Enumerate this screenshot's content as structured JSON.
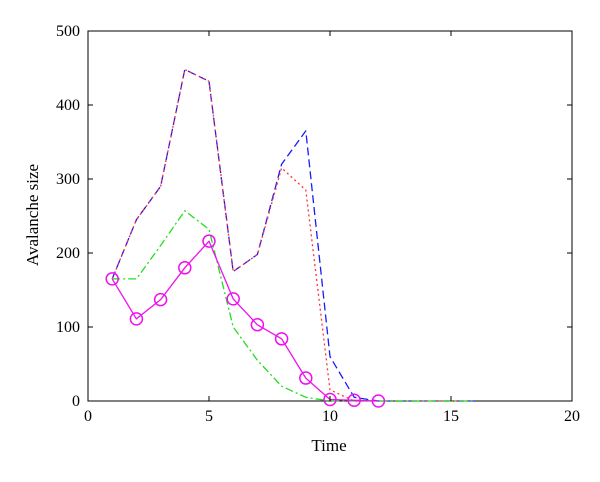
{
  "chart_data": {
    "type": "line",
    "xlabel": "Time",
    "ylabel": "Avalanche size",
    "xlim": [
      0,
      20
    ],
    "ylim": [
      0,
      500
    ],
    "xticks": [
      "0",
      "5",
      "10",
      "15",
      "20"
    ],
    "yticks": [
      "0",
      "100",
      "200",
      "300",
      "400",
      "500"
    ],
    "xtick_values": [
      0,
      5,
      10,
      15,
      20
    ],
    "ytick_values": [
      0,
      100,
      200,
      300,
      400,
      500
    ],
    "grid": false,
    "series": [
      {
        "style": "dashed",
        "color": "#1a1aff",
        "marker": "none",
        "x": [
          1,
          2,
          3,
          4,
          5,
          6,
          7,
          8,
          9,
          10,
          11,
          12,
          13,
          14,
          15,
          16
        ],
        "y": [
          165,
          245,
          290,
          448,
          432,
          175,
          198,
          320,
          365,
          60,
          5,
          0,
          0,
          0,
          0,
          0
        ]
      },
      {
        "style": "dotted",
        "color": "#ff3333",
        "marker": "none",
        "x": [
          1,
          2,
          3,
          4,
          5,
          6,
          7,
          8,
          9,
          10,
          11,
          12,
          13,
          14,
          15,
          16
        ],
        "y": [
          165,
          245,
          290,
          448,
          432,
          175,
          198,
          315,
          285,
          15,
          0,
          0,
          0,
          0,
          0,
          0
        ]
      },
      {
        "style": "dashdot",
        "color": "#22dd22",
        "marker": "none",
        "x": [
          1,
          2,
          3,
          4,
          5,
          6,
          7,
          8,
          9,
          10,
          11,
          12,
          13,
          14,
          15,
          16
        ],
        "y": [
          165,
          165,
          210,
          257,
          232,
          100,
          55,
          20,
          5,
          0,
          0,
          0,
          0,
          0,
          0,
          0
        ]
      },
      {
        "style": "solid",
        "color": "#ee11ee",
        "marker": "circle",
        "x": [
          1,
          2,
          3,
          4,
          5,
          6,
          7,
          8,
          9,
          10,
          11,
          12
        ],
        "y": [
          165,
          111,
          137,
          180,
          216,
          138,
          103,
          84,
          31,
          2,
          1,
          0
        ]
      }
    ]
  }
}
